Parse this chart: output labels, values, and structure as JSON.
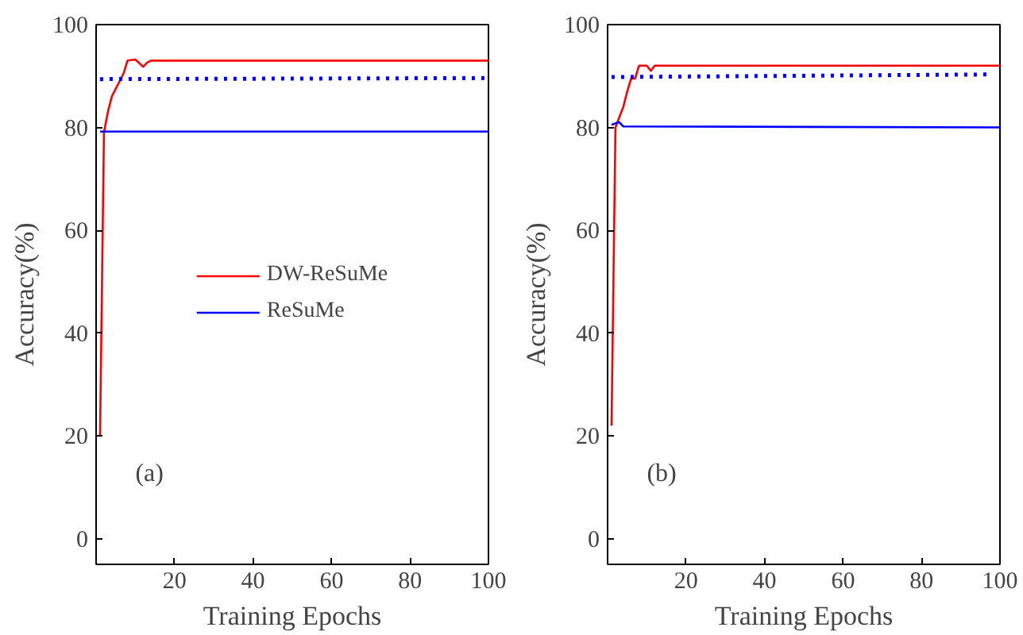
{
  "chart_data": [
    {
      "type": "line",
      "xlabel": "Training Epochs",
      "ylabel": "Accuracy(%)",
      "xlim": [
        0,
        100
      ],
      "ylim": [
        -5,
        100
      ],
      "xticks": [
        20,
        40,
        60,
        80,
        100
      ],
      "yticks": [
        0,
        20,
        40,
        60,
        80,
        100
      ],
      "grid": false,
      "legend": "center",
      "annotations": [
        "(a)"
      ],
      "series": [
        {
          "name": "DW-ReSuMe",
          "color": "#ff0000",
          "x": [
            1,
            2,
            3,
            4,
            5,
            6,
            7,
            8,
            10,
            12,
            13,
            14,
            20,
            100
          ],
          "values": [
            20,
            79,
            83,
            86,
            87.5,
            89,
            90.5,
            93,
            93.2,
            91.8,
            92.6,
            93,
            93,
            93
          ]
        },
        {
          "name": "ReSuMe",
          "color": "#0000ff",
          "x": [
            1,
            100
          ],
          "values": [
            79.2,
            79.2
          ]
        },
        {
          "color": "#0000ff",
          "line_style": "dotted",
          "x": [
            1,
            100
          ],
          "values": [
            89.4,
            89.6
          ]
        }
      ]
    },
    {
      "type": "line",
      "xlabel": "Training Epochs",
      "ylabel": "Accuracy(%)",
      "xlim": [
        0,
        100
      ],
      "ylim": [
        -5,
        100
      ],
      "xticks": [
        20,
        40,
        60,
        80,
        100
      ],
      "yticks": [
        0,
        20,
        40,
        60,
        80,
        100
      ],
      "grid": false,
      "annotations": [
        "(b)"
      ],
      "series": [
        {
          "color": "#ff0000",
          "x": [
            1,
            2,
            3,
            4,
            5,
            6,
            7,
            8,
            10,
            11,
            12,
            100
          ],
          "values": [
            22,
            80,
            82,
            84,
            87,
            89.5,
            89.5,
            92,
            92,
            91,
            92,
            92
          ]
        },
        {
          "color": "#0000ff",
          "x": [
            1,
            2,
            3,
            4,
            100
          ],
          "values": [
            80.5,
            80.8,
            81,
            80.2,
            80
          ]
        },
        {
          "color": "#0000ff",
          "line_style": "dotted",
          "x": [
            1,
            97
          ],
          "values": [
            89.8,
            90.3
          ]
        }
      ]
    }
  ]
}
